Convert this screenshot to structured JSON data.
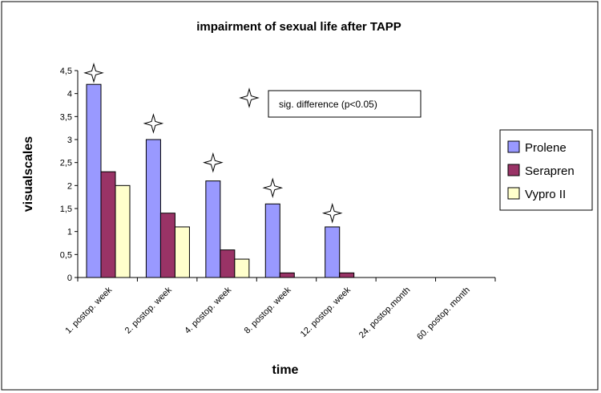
{
  "chart_data": {
    "type": "bar",
    "title": "impairment of sexual life after TAPP",
    "xlabel": "time",
    "ylabel": "visualscales",
    "ylim": [
      0,
      4.5
    ],
    "yticks": [
      "0",
      "0,5",
      "1",
      "1,5",
      "2",
      "2,5",
      "3",
      "3,5",
      "4",
      "4,5"
    ],
    "categories": [
      "1. postop. week",
      "2. postop. week",
      "4. postop. week",
      "8. postop. week",
      "12. postop. week",
      "24. postop.month",
      "60. postop. month"
    ],
    "series": [
      {
        "name": "Prolene",
        "color": "#9999ff",
        "values": [
          4.2,
          3.0,
          2.1,
          1.6,
          1.1,
          0,
          0
        ]
      },
      {
        "name": "Serapren",
        "color": "#993366",
        "values": [
          2.3,
          1.4,
          0.6,
          0.1,
          0.1,
          0,
          0
        ]
      },
      {
        "name": "Vypro II",
        "color": "#ffffcc",
        "values": [
          2.0,
          1.1,
          0.4,
          0,
          0,
          0,
          0
        ]
      }
    ],
    "significance_markers": [
      4.45,
      3.35,
      2.5,
      1.95,
      1.4
    ],
    "annotation": "sig. difference (p<0.05)",
    "legend_position": "right",
    "grid": false
  }
}
